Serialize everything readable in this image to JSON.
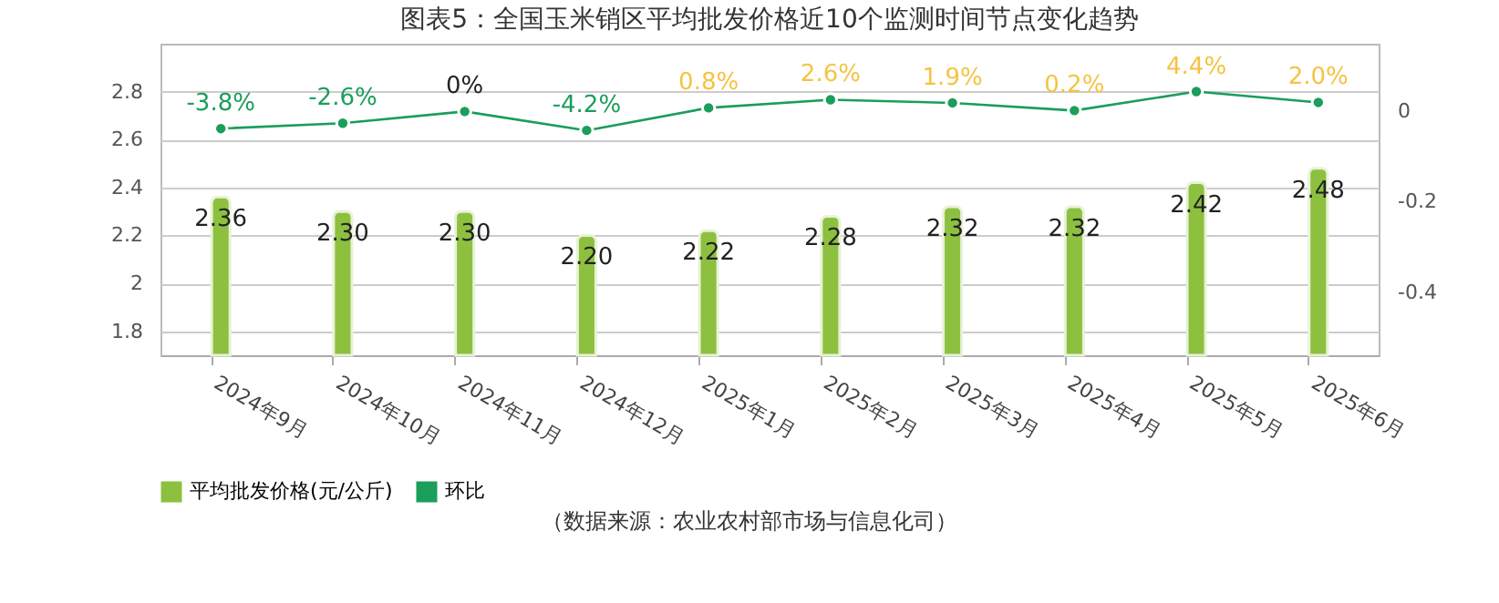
{
  "chart_data": {
    "type": "bar",
    "title": "图表5：全国玉米销区平均批发价格近10个监测时间节点变化趋势",
    "categories": [
      "2024年9月",
      "2024年10月",
      "2024年11月",
      "2024年12月",
      "2025年1月",
      "2025年2月",
      "2025年3月",
      "2025年4月",
      "2025年5月",
      "2025年6月"
    ],
    "series": [
      {
        "name": "平均批发价格(元/公斤)",
        "color": "#8dc03f",
        "values": [
          2.36,
          2.3,
          2.3,
          2.2,
          2.22,
          2.28,
          2.32,
          2.32,
          2.42,
          2.48
        ],
        "value_labels": [
          "2.36",
          "2.30",
          "2.30",
          "2.20",
          "2.22",
          "2.28",
          "2.32",
          "2.32",
          "2.42",
          "2.48"
        ]
      },
      {
        "name": "环比",
        "type": "line",
        "axis": "y2",
        "color": "#1a9e5a",
        "values": [
          -0.038,
          -0.026,
          0,
          -0.042,
          0.008,
          0.026,
          0.019,
          0.002,
          0.044,
          0.02
        ],
        "value_labels": [
          "-3.8%",
          "-2.6%",
          "0%",
          "-4.2%",
          "0.8%",
          "2.6%",
          "1.9%",
          "0.2%",
          "4.4%",
          "2.0%"
        ]
      }
    ],
    "ylim": [
      1.7,
      3.0
    ],
    "yticks": [
      1.8,
      2,
      2.2,
      2.4,
      2.6,
      2.8
    ],
    "y2lim": [
      -0.54,
      0.15
    ],
    "y2ticks": [
      0,
      -0.2,
      -0.4
    ],
    "grid": "y",
    "legend": "bottom",
    "marker": "circle",
    "annotations": [
      "（数据来源：农业农村部市场与信息化司）"
    ]
  }
}
